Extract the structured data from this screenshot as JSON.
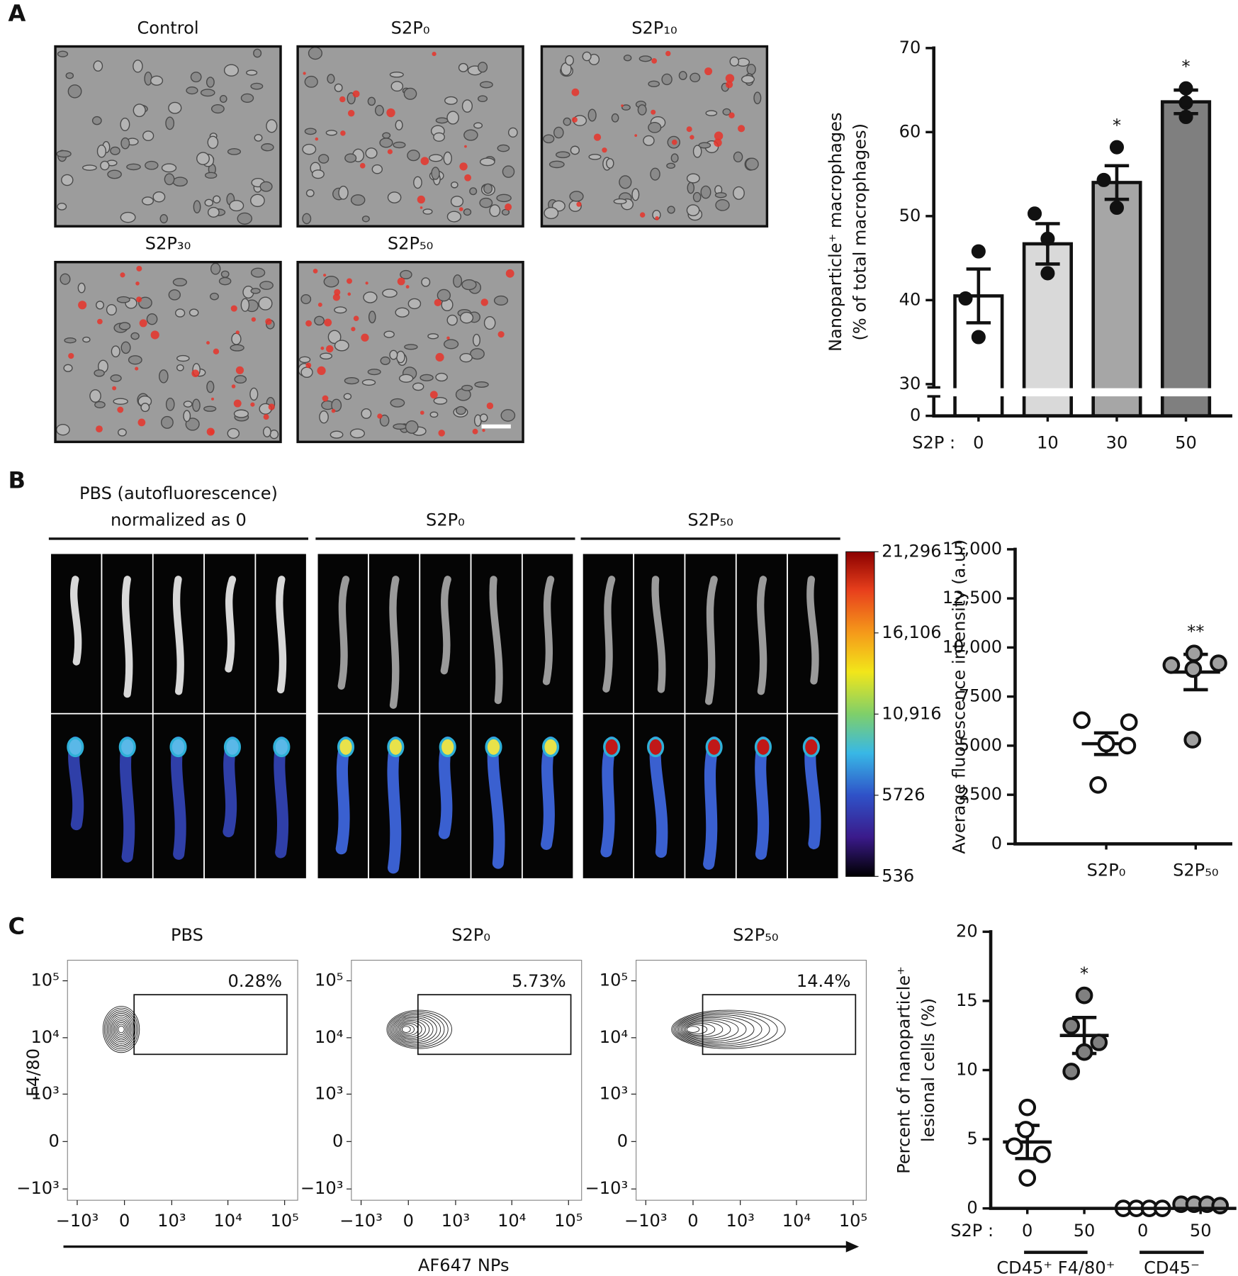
{
  "panels": [
    "A",
    "B",
    "C"
  ],
  "micrographs": {
    "titles": [
      "Control",
      "S2P₀",
      "S2P₁₀",
      "S2P₃₀",
      "S2P₅₀"
    ]
  },
  "imaging": {
    "headers": [
      [
        "PBS (autofluorescence)",
        "normalized as 0"
      ],
      [
        "S2P₀"
      ],
      [
        "S2P₅₀"
      ]
    ]
  },
  "colorbar": {
    "lim": [
      536,
      21296
    ],
    "ticks": [
      {
        "value": 21296,
        "label": "21,296"
      },
      {
        "value": 16106,
        "label": "16,106"
      },
      {
        "value": 10916,
        "label": "10,916"
      },
      5726,
      536
    ]
  },
  "flow_cytometry": {
    "titles": [
      "PBS",
      "S2P₀",
      "S2P₅₀"
    ],
    "values": [
      0.28,
      5.73,
      14.4
    ],
    "value_labels": [
      "0.28%",
      "5.73%",
      "14.4%"
    ],
    "x_label": "AF647 NPs",
    "y_label": "F4/80",
    "scale": "biexponential",
    "xlim": [
      -1500,
      170000
    ],
    "ylim": [
      -1600,
      230000
    ],
    "xticks": [
      {
        "value": -1000,
        "label": "−10³"
      },
      0,
      {
        "value": 1000,
        "label": "10³"
      },
      {
        "value": 10000,
        "label": "10⁴"
      },
      {
        "value": 100000,
        "label": "10⁵"
      }
    ],
    "yticks": [
      {
        "value": -1000,
        "label": "−10³"
      },
      0,
      {
        "value": 1000,
        "label": "10³"
      },
      {
        "value": 10000,
        "label": "10⁴"
      },
      {
        "value": 100000,
        "label": "10⁵"
      }
    ],
    "gate": {
      "x": [
        120,
        110000
      ],
      "y": [
        5100,
        57000
      ]
    }
  },
  "chart_data": [
    {
      "type": "bar",
      "ylabel": [
        "Nanoparticle⁺ macrophages",
        "(% of total macrophages)"
      ],
      "xlabel": "S2P :",
      "categories": [
        "0",
        "10",
        "30",
        "50"
      ],
      "values": [
        40.5,
        46.7,
        54,
        63.6
      ],
      "errors": [
        3.2,
        2.4,
        2.0,
        1.4
      ],
      "points": [
        [
          45.8,
          40.2,
          35.6
        ],
        [
          50.3,
          47.3,
          43.2
        ],
        [
          58.2,
          54.3,
          51
        ],
        [
          65.2,
          63.5,
          61.8
        ]
      ],
      "colors": [
        "#ffffff",
        "#d9d9d9",
        "#a6a6a6",
        "#7f7f7f"
      ],
      "annotations": [
        null,
        null,
        "*",
        "*"
      ],
      "ylim": [
        0,
        70
      ],
      "yticks": [
        0,
        30,
        40,
        50,
        60,
        70
      ],
      "broken_axis": true
    },
    {
      "type": "dot",
      "ylabel": [
        "Average fluorescence intensity (a.u.)"
      ],
      "categories": [
        "S2P₀",
        "S2P₅₀"
      ],
      "values": [
        5100,
        8750
      ],
      "errors": [
        550,
        900
      ],
      "points": [
        [
          6300,
          5100,
          6200,
          5000,
          3000
        ],
        [
          9700,
          9100,
          8900,
          9200,
          5300
        ]
      ],
      "colors": [
        "#ffffff",
        "#a0a0a0"
      ],
      "annotations": [
        null,
        "**"
      ],
      "ylim": [
        0,
        15000
      ],
      "yticks": [
        0,
        2500,
        5000,
        7500,
        {
          "value": 10000,
          "label": "10,000"
        },
        {
          "value": 12500,
          "label": "12,500"
        },
        {
          "value": 15000,
          "label": "15,000"
        }
      ]
    },
    {
      "type": "dot",
      "ylabel": [
        "Percent of nanoparticle⁺",
        "lesional cells (%)"
      ],
      "xlabel": "S2P :",
      "categories": [
        "0",
        "50",
        "0",
        "50"
      ],
      "groups": [
        "CD45⁺ F4/80⁺",
        "CD45⁻"
      ],
      "values": [
        4.8,
        12.5,
        0.1,
        0.2
      ],
      "errors": [
        1.2,
        1.3,
        0.05,
        0.1
      ],
      "points": [
        [
          7.3,
          5.7,
          4.5,
          3.9,
          2.2
        ],
        [
          15.4,
          13.2,
          12,
          11.3,
          9.9
        ],
        [
          0,
          0,
          0,
          0
        ],
        [
          0.3,
          0.3,
          0.3,
          0.2
        ]
      ],
      "colors": [
        "#ffffff",
        "#808080",
        "#ffffff",
        "#a0a0a0"
      ],
      "annotations": [
        null,
        "*",
        null,
        null
      ],
      "ylim": [
        0,
        20
      ],
      "yticks": [
        0,
        5,
        10,
        15,
        20
      ]
    }
  ]
}
